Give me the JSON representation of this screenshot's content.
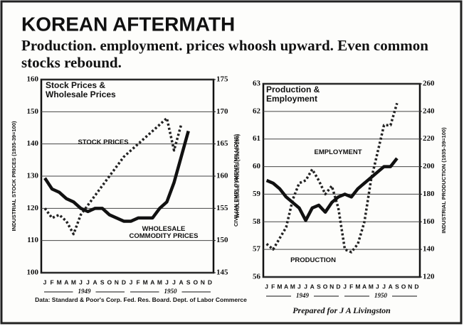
{
  "header": {
    "title": "KOREAN AFTERMATH",
    "subtitle": "Production. employment. prices whoosh upward. Even common stocks rebound."
  },
  "chart_data": [
    {
      "type": "line",
      "title": "Stock Prices & Wholesale Prices",
      "ylabel": "INDUSTRIAL STOCK PRICES (1935-39=100)",
      "y2label": "WHOLESALE PRICES (1926=100)",
      "categories": [
        "J",
        "F",
        "M",
        "A",
        "M",
        "J",
        "J",
        "A",
        "S",
        "O",
        "N",
        "D",
        "J",
        "F",
        "M",
        "A",
        "M",
        "J",
        "J",
        "A",
        "S",
        "O",
        "N",
        "D"
      ],
      "year_labels": [
        "1949",
        "1950"
      ],
      "ylim": [
        100,
        160
      ],
      "yticks": [
        100,
        110,
        120,
        130,
        140,
        150,
        160
      ],
      "y2lim": [
        145,
        175
      ],
      "y2ticks": [
        145,
        150,
        155,
        160,
        165,
        170,
        175
      ],
      "series": [
        {
          "name": "STOCK PRICES",
          "color": "#222",
          "dashed": true,
          "values": [
            120,
            117,
            118,
            116,
            112,
            118,
            121,
            124,
            127,
            130,
            133,
            136,
            138,
            140,
            142,
            144,
            146,
            148,
            138,
            146,
            null,
            null,
            null,
            null
          ]
        },
        {
          "name": "WHOLESALE COMMODITY PRICES",
          "color": "#111",
          "dashed": false,
          "axis": "y2",
          "values": [
            159.7,
            158,
            157.5,
            156.5,
            156,
            155,
            154.5,
            155,
            155,
            154,
            153.5,
            153,
            153,
            153.5,
            153.5,
            153.5,
            155,
            156,
            159,
            163,
            167,
            null,
            null,
            null
          ]
        }
      ],
      "source": "Data: Standard & Poor's Corp. Fed. Res. Board. Dept. of Labor Commerce"
    },
    {
      "type": "line",
      "title": "Production & Employment",
      "ylabel": "CIVILIAN EMPLOYMENT (MILLIONS)",
      "y2label": "INDUSTRIAL PRODUCTION (1935-39=100)",
      "categories": [
        "J",
        "F",
        "M",
        "A",
        "M",
        "J",
        "J",
        "A",
        "S",
        "O",
        "N",
        "D",
        "J",
        "F",
        "M",
        "A",
        "M",
        "J",
        "J",
        "A",
        "S",
        "O",
        "N",
        "D"
      ],
      "year_labels": [
        "1949",
        "1950"
      ],
      "ylim": [
        56,
        63
      ],
      "yticks": [
        56,
        57,
        58,
        59,
        60,
        61,
        62,
        63
      ],
      "y2lim": [
        120,
        260
      ],
      "y2ticks": [
        120,
        140,
        160,
        180,
        200,
        220,
        240,
        260
      ],
      "series": [
        {
          "name": "EMPLOYMENT",
          "color": "#222",
          "dashed": true,
          "values": [
            57.2,
            57.0,
            57.4,
            57.8,
            58.8,
            59.4,
            59.5,
            59.9,
            59.5,
            59.0,
            59.3,
            58.5,
            57.0,
            56.9,
            57.2,
            58.0,
            59.5,
            60.5,
            61.5,
            61.5,
            62.3,
            null,
            null,
            null
          ]
        },
        {
          "name": "PRODUCTION",
          "color": "#111",
          "dashed": false,
          "axis": "y2",
          "values": [
            190,
            188,
            184,
            178,
            174,
            170,
            161,
            170,
            172,
            167,
            174,
            178,
            180,
            178,
            184,
            188,
            192,
            196,
            200,
            200,
            206,
            null,
            null,
            null
          ]
        }
      ],
      "credit": "Prepared for J A Livingston"
    }
  ]
}
